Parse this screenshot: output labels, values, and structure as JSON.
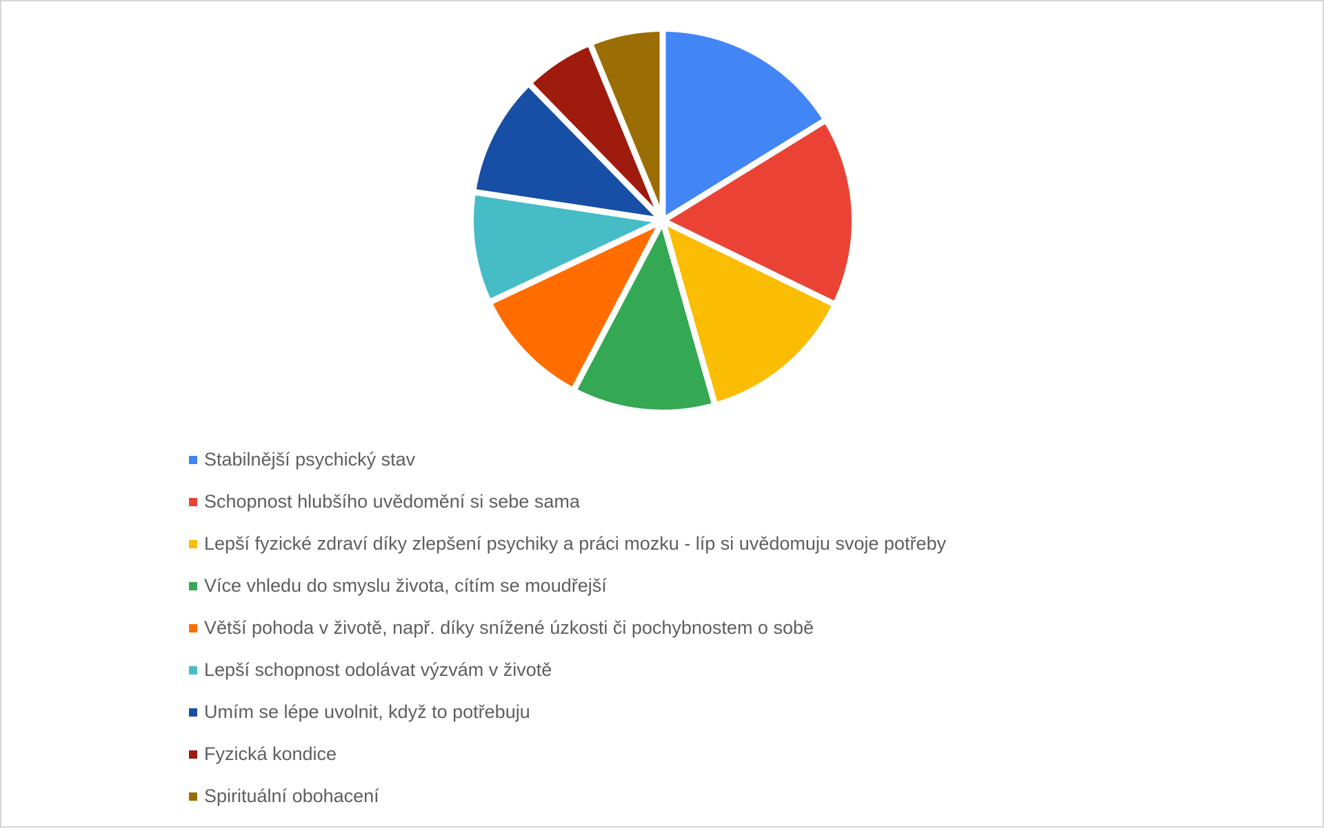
{
  "page": {
    "background_color": "#ffffff",
    "border_color": "#d6d6d6"
  },
  "chart_data": {
    "type": "pie",
    "title": "",
    "legend_position": "bottom-left",
    "start_angle_deg": 0,
    "direction": "clockwise",
    "slice_gap_color": "#ffffff",
    "labels": [
      "Stabilnější psychický stav",
      "Schopnost hlubšího uvědomění si sebe sama",
      "Lepší fyzické zdraví díky zlepšení psychiky a práci mozku - líp si uvědomuju svoje potřeby",
      "Více vhledu do smyslu života, cítím se moudřejší",
      "Větší pohoda v životě, např. díky snížené úzkosti či pochybnostem o sobě",
      "Lepší schopnost odolávat výzvám v životě",
      "Umím se lépe uvolnit, když to potřebuju",
      "Fyzická kondice",
      "Spirituální obohacení"
    ],
    "values_percent": [
      16.2,
      16.0,
      13.4,
      12.1,
      10.3,
      9.4,
      10.3,
      6.1,
      6.2
    ],
    "colors": [
      "#4285F4",
      "#EA4335",
      "#FBBC04",
      "#34A853",
      "#FF6D01",
      "#46BDC6",
      "#174EA6",
      "#9E1B0E",
      "#9A6E05"
    ],
    "legend_text_color": "#5e5e5e"
  }
}
